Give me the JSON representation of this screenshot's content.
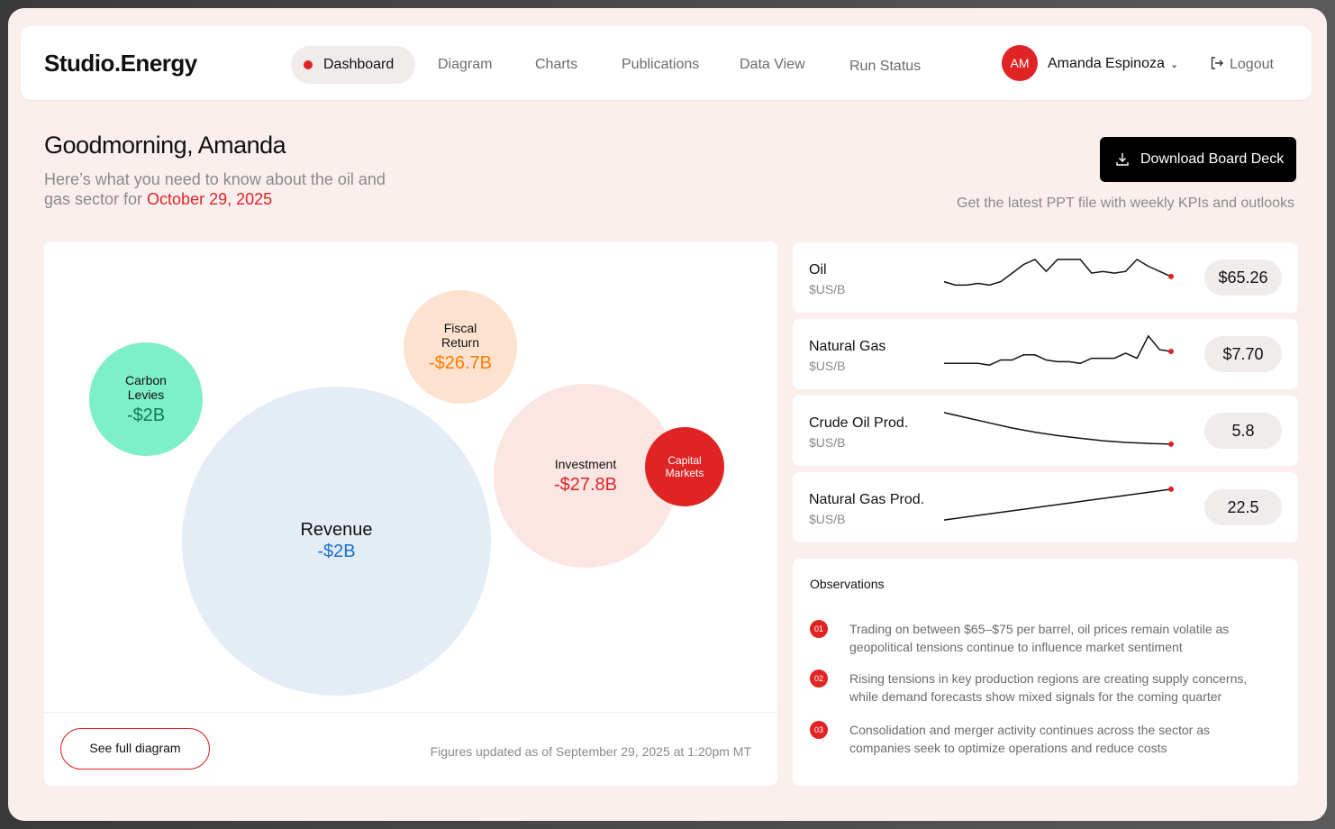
{
  "app": {
    "brand": "Studio.Energy"
  },
  "nav": {
    "items": [
      {
        "label": "Dashboard",
        "active": true
      },
      {
        "label": "Diagram"
      },
      {
        "label": "Charts"
      },
      {
        "label": "Publications"
      },
      {
        "label": "Data View"
      },
      {
        "label": "Run Status"
      }
    ]
  },
  "user": {
    "initials": "AM",
    "name": "Amanda Espinoza",
    "logout_label": "Logout"
  },
  "header": {
    "greeting": "Goodmorning, Amanda",
    "subtitle": "Here’s what you need to know about the oil and gas sector for ",
    "date": "October 29, 2025",
    "download_label": "Download Board Deck",
    "download_hint": "Get the latest PPT file with weekly KPIs and outlooks"
  },
  "diagram": {
    "bubbles": [
      {
        "label": "Carbon\nLevies",
        "value": "-$2B",
        "color": "#7ef0c9",
        "value_color": "#127a55"
      },
      {
        "label": "Fiscal\nReturn",
        "value": "-$26.7B",
        "color": "#fde3cf",
        "value_color": "#ff7a00"
      },
      {
        "label": "Revenue",
        "value": "-$2B",
        "color": "#e4ecf6",
        "value_color": "#1a6fd1"
      },
      {
        "label": "Investment",
        "value": "-$27.8B",
        "color": "#fbe6e4",
        "value_color": "#e02424"
      },
      {
        "label": "Capital\nMarkets",
        "value": "",
        "color": "#e02424",
        "value_color": "#ffffff"
      }
    ],
    "see_full_label": "See full diagram",
    "updated_text": "Figures updated as of September 29, 2025 at 1:20pm MT"
  },
  "metrics": [
    {
      "name": "Oil",
      "unit": "$US/B",
      "value": "$65.26",
      "spark": [
        0.3,
        0.2,
        0.2,
        0.25,
        0.2,
        0.3,
        0.55,
        0.8,
        0.95,
        0.6,
        0.95,
        0.95,
        0.95,
        0.55,
        0.6,
        0.55,
        0.6,
        0.95,
        0.75,
        0.6,
        0.45
      ]
    },
    {
      "name": "Natural Gas",
      "unit": "$US/B",
      "value": "$7.70",
      "spark": [
        0.15,
        0.15,
        0.15,
        0.15,
        0.1,
        0.25,
        0.25,
        0.4,
        0.4,
        0.25,
        0.2,
        0.2,
        0.15,
        0.3,
        0.3,
        0.3,
        0.45,
        0.3,
        0.95,
        0.55,
        0.5
      ]
    },
    {
      "name": "Crude Oil Prod.",
      "unit": "$US/B",
      "value": "5.8",
      "spark": [
        0.95,
        0.8,
        0.65,
        0.5,
        0.38,
        0.28,
        0.2,
        0.13,
        0.08,
        0.05,
        0.03
      ]
    },
    {
      "name": "Natural Gas Prod.",
      "unit": "$US/B",
      "value": "22.5",
      "spark": [
        0.05,
        0.15,
        0.25,
        0.35,
        0.45,
        0.55,
        0.65,
        0.75,
        0.85,
        0.95
      ]
    }
  ],
  "observations": {
    "title": "Observations",
    "items": [
      {
        "num": "01",
        "text": "Trading on between $65–$75 per barrel, oil prices remain volatile as geopolitical tensions continue to influence market sentiment"
      },
      {
        "num": "02",
        "text": "Rising tensions in key production regions are creating supply concerns, while demand forecasts show mixed signals for the coming quarter"
      },
      {
        "num": "03",
        "text": "Consolidation and merger activity continues across the sector as companies seek to optimize operations and reduce costs"
      }
    ]
  },
  "colors": {
    "accent": "#e02424",
    "background": "#fbefee"
  }
}
